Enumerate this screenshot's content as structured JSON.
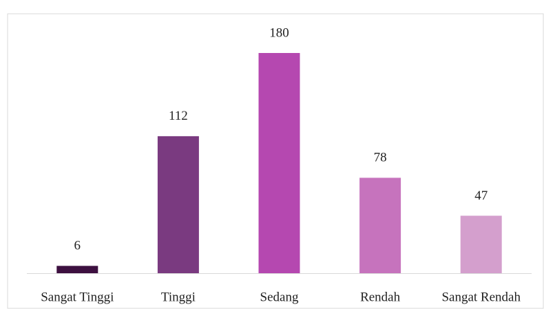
{
  "chart_data": {
    "type": "bar",
    "categories": [
      "Sangat Tinggi",
      "Tinggi",
      "Sedang",
      "Rendah",
      "Sangat Rendah"
    ],
    "values": [
      6,
      112,
      180,
      78,
      47
    ],
    "colors": [
      "#3d1040",
      "#7a3a80",
      "#b548b0",
      "#c673bd",
      "#d49fcd"
    ]
  }
}
